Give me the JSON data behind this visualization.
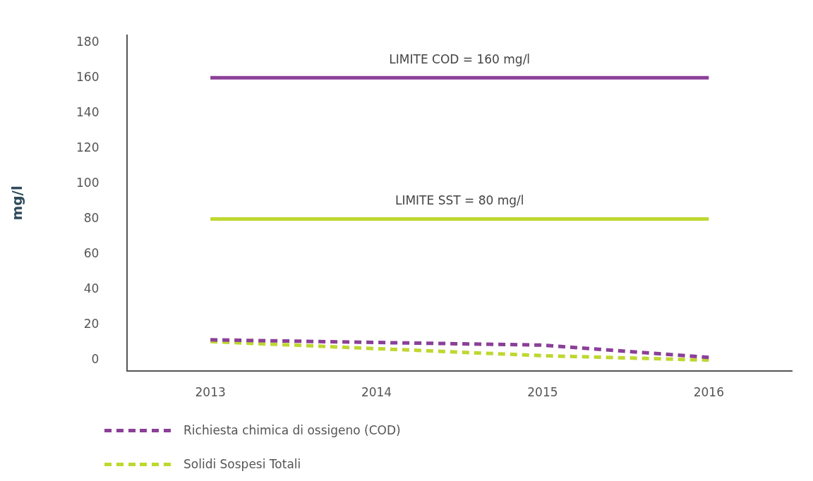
{
  "chart_data": {
    "type": "line",
    "ylabel": "mg/l",
    "categories": [
      "2013",
      "2014",
      "2015",
      "2016"
    ],
    "series": [
      {
        "name": "Richiesta chimica di ossigeno (COD)",
        "color": "#8b3f98",
        "values": [
          11.5,
          10,
          8.5,
          1.5
        ]
      },
      {
        "name": "Solidi Sospesi Totali",
        "color": "#bfd730",
        "values": [
          10.5,
          6.5,
          2.5,
          0
        ]
      }
    ],
    "ylim": [
      -6,
      184
    ],
    "yticks": [
      0,
      20,
      40,
      60,
      80,
      100,
      120,
      140,
      160,
      180
    ],
    "grid": false,
    "legend": "bottom",
    "line_style": "dashed",
    "marker": "none",
    "ref_lines": [
      {
        "axis": "y",
        "value": 160,
        "label": "LIMITE COD = 160 mg/l",
        "color": "#8b3f98",
        "line_style": "solid"
      },
      {
        "axis": "y",
        "value": 80,
        "label": "LIMITE SST = 80 mg/l",
        "color": "#bfd730",
        "line_style": "solid"
      }
    ]
  }
}
